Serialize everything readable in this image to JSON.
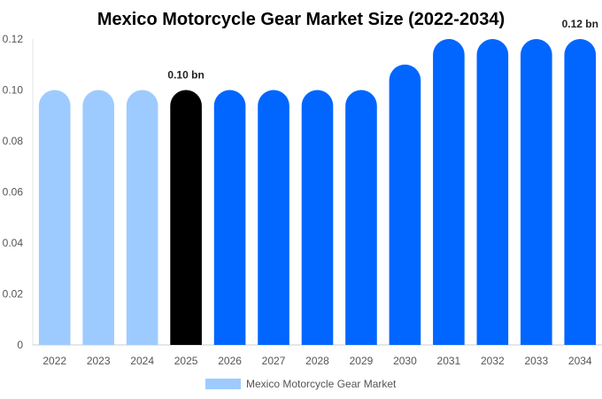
{
  "chart_data": {
    "type": "bar",
    "title": "Mexico Motorcycle Gear Market Size (2022-2034)",
    "categories": [
      "2022",
      "2023",
      "2024",
      "2025",
      "2026",
      "2027",
      "2028",
      "2029",
      "2030",
      "2031",
      "2032",
      "2033",
      "2034"
    ],
    "series": [
      {
        "name": "Mexico Motorcycle Gear Market",
        "values": [
          0.1,
          0.1,
          0.1,
          0.1,
          0.1,
          0.1,
          0.1,
          0.1,
          0.11,
          0.12,
          0.12,
          0.12,
          0.12
        ]
      }
    ],
    "bar_colors": [
      "#9ecbff",
      "#9ecbff",
      "#9ecbff",
      "#000000",
      "#0066ff",
      "#0066ff",
      "#0066ff",
      "#0066ff",
      "#0066ff",
      "#0066ff",
      "#0066ff",
      "#0066ff",
      "#0066ff"
    ],
    "data_labels": [
      {
        "category": "2025",
        "text": "0.10 bn"
      },
      {
        "category": "2034",
        "text": "0.12 bn"
      }
    ],
    "y_ticks": [
      "0",
      "0.02",
      "0.04",
      "0.06",
      "0.08",
      "0.10",
      "0.12"
    ],
    "ylim": [
      0,
      0.12
    ],
    "xlabel": "",
    "ylabel": "",
    "grid": false,
    "legend": {
      "position": "bottom",
      "label": "Mexico Motorcycle Gear Market",
      "color": "#9ecbff"
    }
  }
}
